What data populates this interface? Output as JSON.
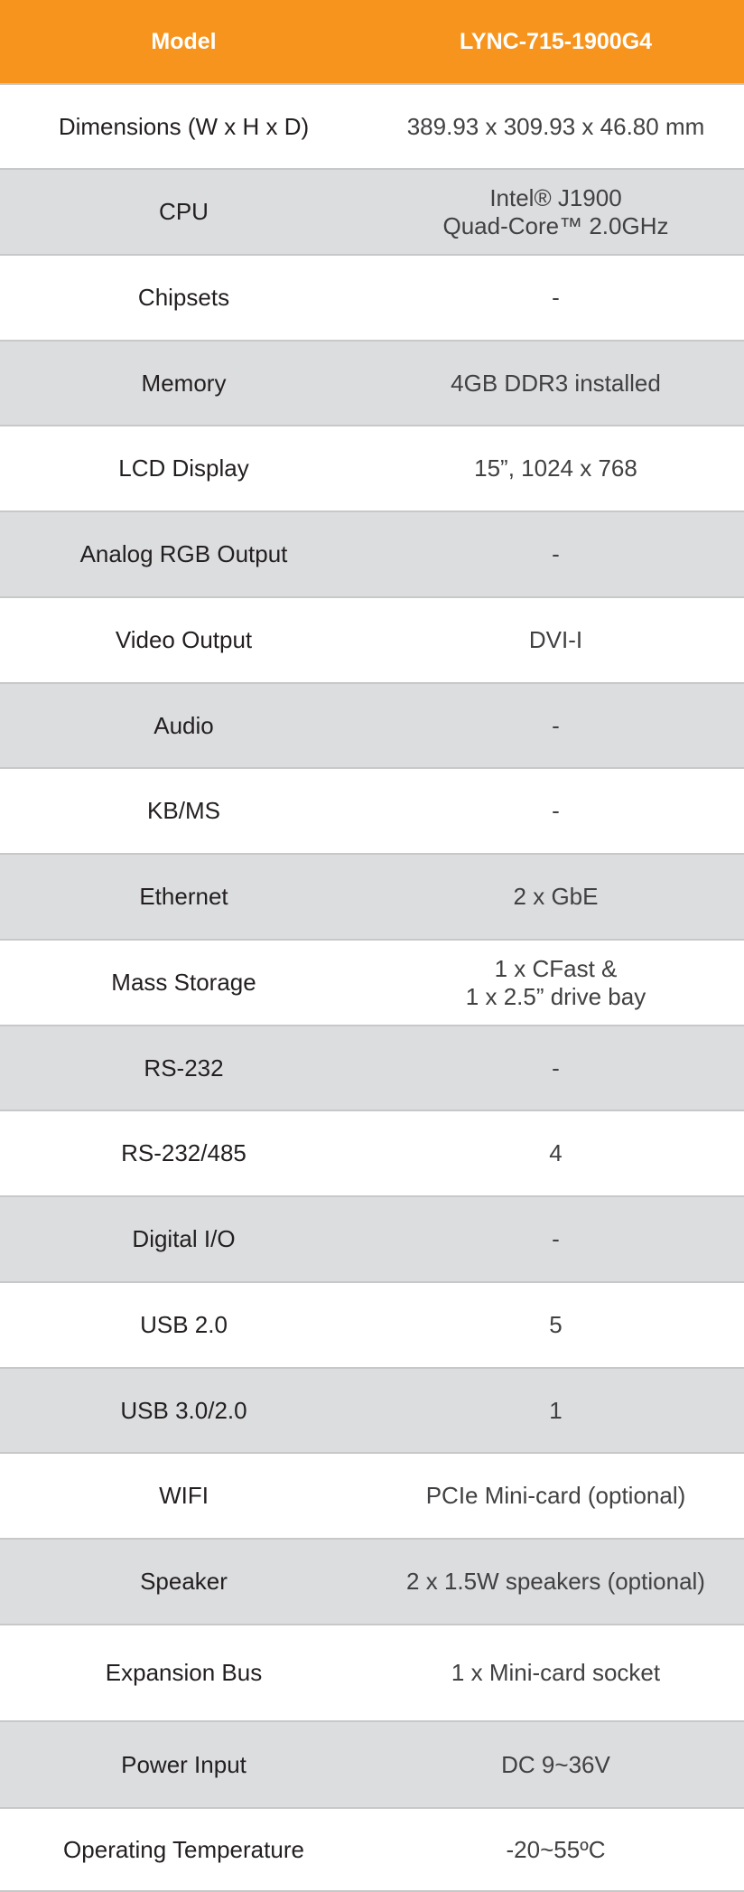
{
  "header": {
    "label": "Model",
    "value": "LYNC-715-1900G4"
  },
  "colors": {
    "header_bg": "#f7941d",
    "alt_row_bg": "#dcdddf"
  },
  "rows": [
    {
      "label": "Dimensions (W x H x D)",
      "value": [
        "389.93 x 309.93 x 46.80 mm"
      ]
    },
    {
      "label": "CPU",
      "value": [
        "Intel® J1900",
        "Quad-Core™ 2.0GHz"
      ]
    },
    {
      "label": "Chipsets",
      "value": [
        "-"
      ]
    },
    {
      "label": "Memory",
      "value": [
        "4GB DDR3 installed"
      ]
    },
    {
      "label": "LCD Display",
      "value": [
        "15”, 1024 x 768"
      ]
    },
    {
      "label": "Analog RGB Output",
      "value": [
        "-"
      ]
    },
    {
      "label": "Video  Output",
      "value": [
        "DVI-I"
      ]
    },
    {
      "label": "Audio",
      "value": [
        "-"
      ]
    },
    {
      "label": "KB/MS",
      "value": [
        "-"
      ]
    },
    {
      "label": "Ethernet",
      "value": [
        "2 x GbE"
      ]
    },
    {
      "label": "Mass Storage",
      "value": [
        "1 x CFast &",
        "1 x 2.5” drive bay"
      ]
    },
    {
      "label": "RS-232",
      "value": [
        "-"
      ]
    },
    {
      "label": "RS-232/485",
      "value": [
        "4"
      ]
    },
    {
      "label": "Digital I/O",
      "value": [
        "-"
      ]
    },
    {
      "label": "USB 2.0",
      "value": [
        "5"
      ]
    },
    {
      "label": "USB 3.0/2.0",
      "value": [
        "1"
      ]
    },
    {
      "label": "WIFI",
      "value": [
        "PCIe Mini-card (optional)"
      ]
    },
    {
      "label": "Speaker",
      "value": [
        "2 x 1.5W speakers (optional)"
      ]
    },
    {
      "label": "Expansion Bus",
      "value": [
        "1 x Mini-card socket"
      ]
    },
    {
      "label": "Power Input",
      "value": [
        "DC 9~36V"
      ]
    },
    {
      "label": "Operating Temperature",
      "value": [
        "-20~55ºC"
      ]
    }
  ]
}
